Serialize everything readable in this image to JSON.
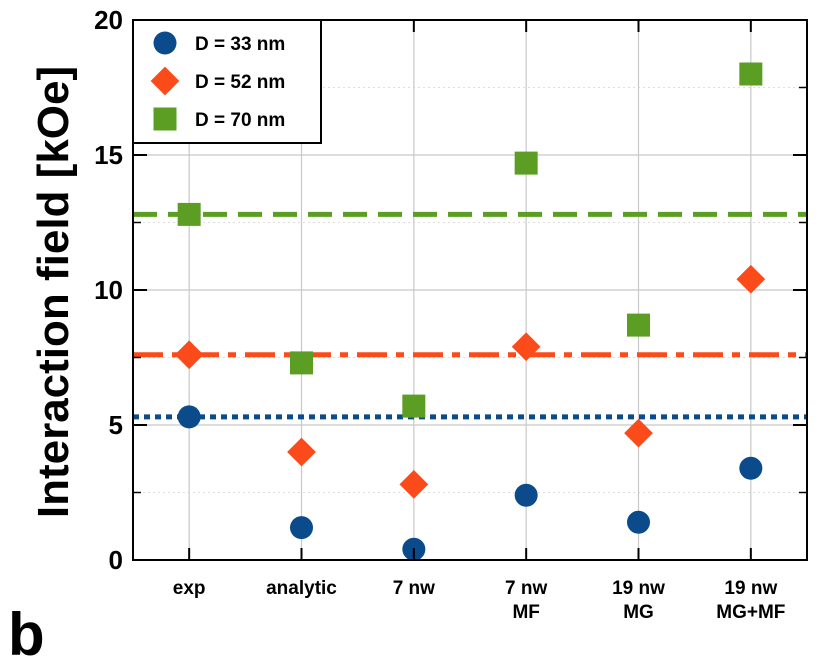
{
  "chart_data": {
    "type": "scatter",
    "panel_label": "b",
    "ylabel": "Interaction field [kOe]",
    "xlabel": "",
    "ylim": [
      0,
      20
    ],
    "yticks": [
      0,
      5,
      10,
      15,
      20
    ],
    "categories": [
      [
        "exp"
      ],
      [
        "analytic"
      ],
      [
        "7 nw"
      ],
      [
        "7 nw",
        "MF"
      ],
      [
        "19 nw",
        "MG"
      ],
      [
        "19 nw",
        "MG+MF"
      ]
    ],
    "grid": true,
    "legend_position": "top-left",
    "series": [
      {
        "name": "D = 33 nm",
        "marker": "circle",
        "color": "#0b4a8b",
        "values": [
          5.3,
          1.2,
          0.4,
          2.4,
          1.4,
          3.4
        ],
        "reference_line": {
          "value": 5.3,
          "style": "dotted"
        }
      },
      {
        "name": "D = 52 nm",
        "marker": "diamond",
        "color": "#fb4b1a",
        "values": [
          7.6,
          4.0,
          2.8,
          7.9,
          4.7,
          10.4
        ],
        "reference_line": {
          "value": 7.6,
          "style": "dashdot"
        }
      },
      {
        "name": "D = 70 nm",
        "marker": "square",
        "color": "#5b9e23",
        "values": [
          12.8,
          7.3,
          5.7,
          14.7,
          8.7,
          18.0
        ],
        "reference_line": {
          "value": 12.8,
          "style": "dashed"
        }
      }
    ]
  }
}
